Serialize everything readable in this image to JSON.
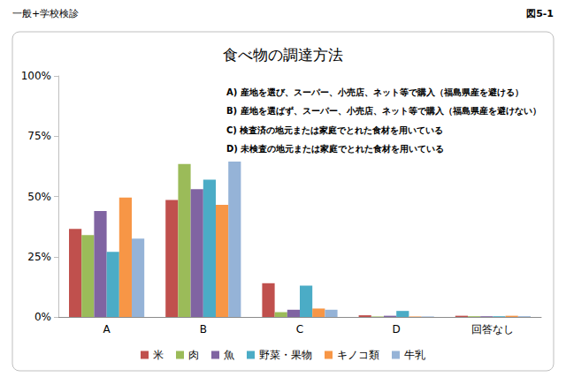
{
  "header": {
    "left": "一般+学校検診",
    "right": "図5-1"
  },
  "chart_data": {
    "type": "bar",
    "title": "食べ物の調達方法",
    "annotations": [
      "A) 産地を選び、スーパー、小売店、ネット等で購入（福島県産を避ける）",
      "B) 産地を選ばず、スーパー、小売店、ネット等で購入（福島県産を避けない）",
      "C) 検査済の地元または家庭でとれた食材を用いている",
      "D) 未検査の地元または家庭でとれた食材を用いている"
    ],
    "categories": [
      "A",
      "B",
      "C",
      "D",
      "回答なし"
    ],
    "series": [
      {
        "name": "米",
        "color": "#c0504d",
        "values": [
          36.5,
          48.5,
          14,
          0.7,
          0.5
        ]
      },
      {
        "name": "肉",
        "color": "#9bbb59",
        "values": [
          34,
          63.5,
          2,
          0.2,
          0.3
        ]
      },
      {
        "name": "魚",
        "color": "#8064a2",
        "values": [
          44,
          53,
          3,
          0.5,
          0.3
        ]
      },
      {
        "name": "野菜・果物",
        "color": "#4bacc6",
        "values": [
          27,
          57,
          13,
          2.5,
          0.3
        ]
      },
      {
        "name": "キノコ類",
        "color": "#f79646",
        "values": [
          49.5,
          46.5,
          3.5,
          0.2,
          0.5
        ]
      },
      {
        "name": "牛乳",
        "color": "#95b3d7",
        "values": [
          32.5,
          64.5,
          3,
          0.2,
          0.3
        ]
      }
    ],
    "ylim": [
      0,
      100
    ],
    "yticks": [
      {
        "value": 0,
        "label": "0%"
      },
      {
        "value": 25,
        "label": "25%"
      },
      {
        "value": 50,
        "label": "50%"
      },
      {
        "value": 75,
        "label": "75%"
      },
      {
        "value": 100,
        "label": "100%"
      }
    ],
    "grid": false,
    "legend": "bottom"
  }
}
